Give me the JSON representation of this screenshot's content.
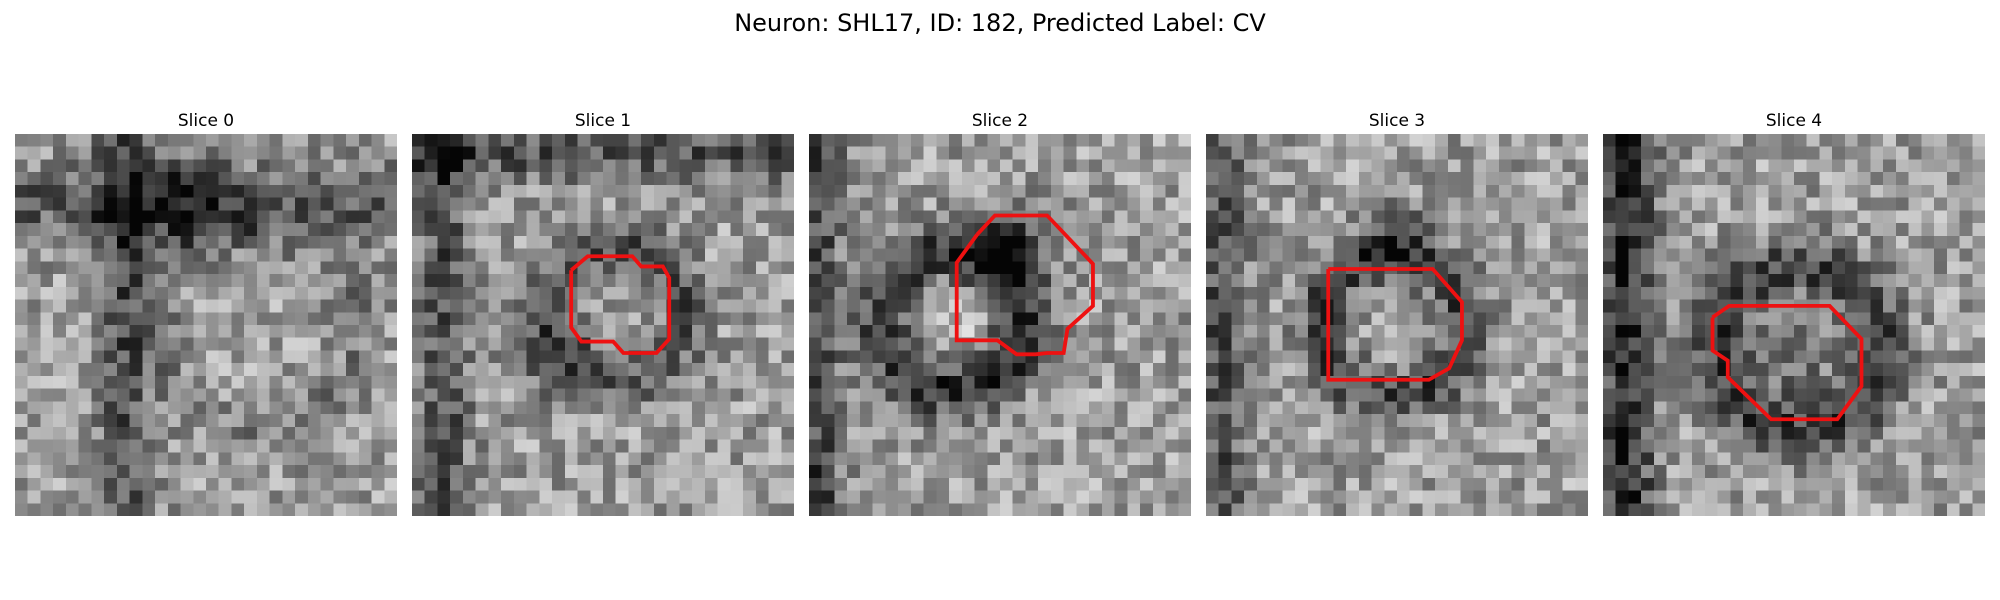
{
  "figure": {
    "title": "Neuron: SHL17, ID: 182, Predicted Label: CV"
  },
  "colors": {
    "outline": "#ee1111",
    "colormap": "gray"
  },
  "grid_size": 30,
  "panels": [
    {
      "title": "Slice 0",
      "has_outline": false,
      "outline": [],
      "features": [
        {
          "shape": "band_v",
          "pos": 8.5,
          "half_width": 1.6,
          "strength": -0.3
        },
        {
          "shape": "band_h",
          "pos": 5.5,
          "half_width": 2.2,
          "strength": -0.25
        },
        {
          "shape": "blob",
          "cx": 13.5,
          "cy": 5,
          "sigma": 2.5,
          "strength": -0.3
        },
        {
          "shape": "ring",
          "cx": 19,
          "cy": 15,
          "radius": 8,
          "width": 1.4,
          "strength": -0.12
        }
      ],
      "seed": 11
    },
    {
      "title": "Slice 1",
      "has_outline": true,
      "outline": [
        [
          12.5,
          10.7
        ],
        [
          13.8,
          9.6
        ],
        [
          17.3,
          9.6
        ],
        [
          18,
          10.4
        ],
        [
          19.7,
          10.4
        ],
        [
          20.2,
          11.3
        ],
        [
          20.2,
          16.1
        ],
        [
          19.2,
          17.2
        ],
        [
          16.6,
          17.2
        ],
        [
          15.8,
          16.3
        ],
        [
          13.3,
          16.3
        ],
        [
          12.5,
          15.2
        ],
        [
          12.5,
          10.7
        ]
      ],
      "features": [
        {
          "shape": "band_v",
          "pos": 2.5,
          "half_width": 1.5,
          "strength": -0.3
        },
        {
          "shape": "band_h",
          "pos": 1.5,
          "half_width": 1.5,
          "strength": -0.3
        },
        {
          "shape": "ring",
          "cx": 16.2,
          "cy": 14,
          "radius": 5.2,
          "width": 1.5,
          "strength": -0.28
        },
        {
          "shape": "blob",
          "cx": 11,
          "cy": 18,
          "sigma": 2.3,
          "strength": -0.18
        }
      ],
      "seed": 23
    },
    {
      "title": "Slice 2",
      "has_outline": true,
      "outline": [
        [
          13.2,
          7.9
        ],
        [
          14.6,
          6.4
        ],
        [
          18.7,
          6.4
        ],
        [
          22.3,
          10.2
        ],
        [
          22.3,
          13.5
        ],
        [
          20.3,
          15.3
        ],
        [
          20,
          17.2
        ],
        [
          18.7,
          17.2
        ],
        [
          17.8,
          17.3
        ],
        [
          16.3,
          17.3
        ],
        [
          14.8,
          16.2
        ],
        [
          13.8,
          16.2
        ],
        [
          11.6,
          16.2
        ],
        [
          11.6,
          10.1
        ],
        [
          13.2,
          7.9
        ]
      ],
      "features": [
        {
          "shape": "band_v",
          "pos": 0.8,
          "half_width": 1.2,
          "strength": -0.35
        },
        {
          "shape": "ring",
          "cx": 11.3,
          "cy": 14.6,
          "radius": 5.4,
          "width": 1.7,
          "strength": -0.45
        },
        {
          "shape": "blob",
          "cx": 16,
          "cy": 9,
          "sigma": 2.2,
          "strength": -0.35
        },
        {
          "shape": "blob",
          "cx": 10.5,
          "cy": 14.8,
          "sigma": 2.2,
          "strength": 0.18
        }
      ],
      "seed": 37
    },
    {
      "title": "Slice 3",
      "has_outline": true,
      "outline": [
        [
          9.6,
          10.6
        ],
        [
          17.8,
          10.6
        ],
        [
          20.1,
          13.2
        ],
        [
          20.1,
          16.2
        ],
        [
          19.1,
          18.4
        ],
        [
          17.5,
          19.3
        ],
        [
          9.6,
          19.3
        ],
        [
          9.6,
          10.6
        ]
      ],
      "features": [
        {
          "shape": "band_v",
          "pos": 1.2,
          "half_width": 1.6,
          "strength": -0.3
        },
        {
          "shape": "ring",
          "cx": 14.6,
          "cy": 15,
          "radius": 5.6,
          "width": 1.5,
          "strength": -0.35
        },
        {
          "shape": "blob",
          "cx": 15,
          "cy": 8,
          "sigma": 2,
          "strength": -0.22
        }
      ],
      "seed": 41
    },
    {
      "title": "Slice 4",
      "has_outline": true,
      "outline": [
        [
          8.6,
          14.4
        ],
        [
          9.9,
          13.5
        ],
        [
          17.8,
          13.5
        ],
        [
          20.3,
          16.1
        ],
        [
          20.3,
          19.8
        ],
        [
          18.4,
          22.4
        ],
        [
          13.2,
          22.4
        ],
        [
          9.8,
          19.1
        ],
        [
          9.8,
          17.8
        ],
        [
          8.6,
          17
        ],
        [
          8.6,
          14.4
        ]
      ],
      "features": [
        {
          "shape": "band_v",
          "pos": 1.8,
          "half_width": 1.6,
          "strength": -0.45
        },
        {
          "shape": "ring",
          "cx": 15.3,
          "cy": 16.8,
          "radius": 6.5,
          "width": 1.7,
          "strength": -0.35
        },
        {
          "shape": "blob",
          "cx": 15,
          "cy": 18,
          "sigma": 3,
          "strength": -0.15
        }
      ],
      "seed": 53
    }
  ]
}
